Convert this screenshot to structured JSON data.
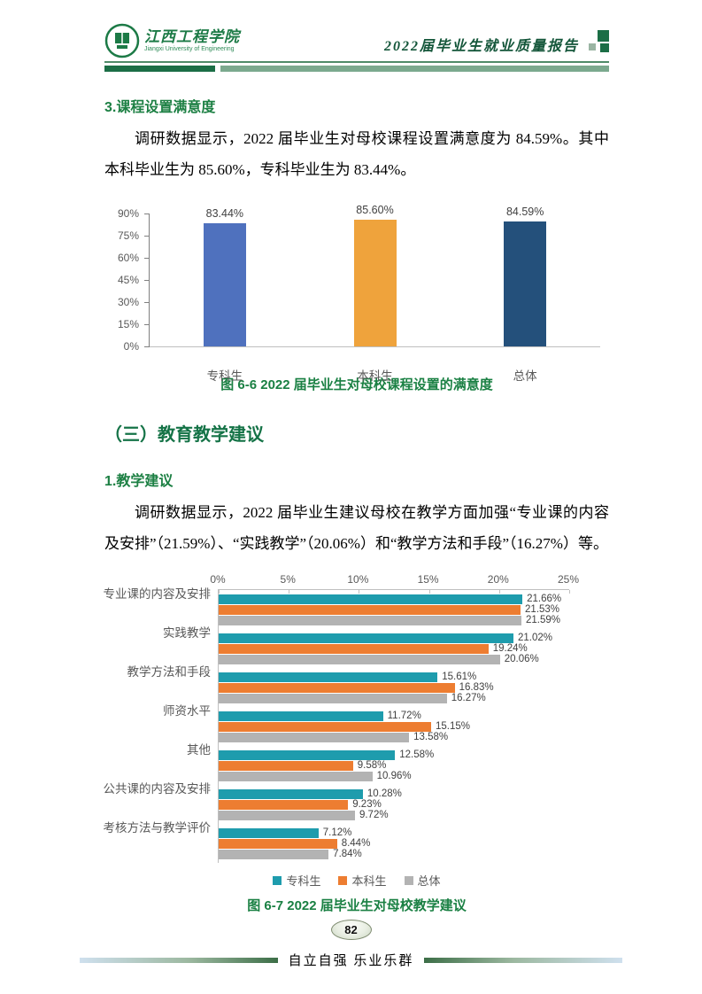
{
  "header": {
    "logo_title": "江西工程学院",
    "logo_subtitle": "Jiangxi University of Engineering",
    "report_title": "2022届毕业生就业质量报告"
  },
  "section3": {
    "heading": "3.课程设置满意度",
    "paragraph": "调研数据显示，2022 届毕业生对母校课程设置满意度为 84.59%。其中本科毕业生为 85.60%，专科毕业生为 83.44%。"
  },
  "figure6_6": {
    "caption": "图 6-6 2022 届毕业生对母校课程设置的满意度"
  },
  "section_c": {
    "heading": "（三）教育教学建议"
  },
  "section1": {
    "heading": "1.教学建议",
    "paragraph": "调研数据显示，2022 届毕业生建议母校在教学方面加强“专业课的内容及安排”（21.59%）、“实践教学”（20.06%）和“教学方法和手段”（16.27%）等。"
  },
  "figure6_7": {
    "caption": "图 6-7 2022 届毕业生对母校教学建议"
  },
  "footer": {
    "page_number": "82",
    "motto": "自立自强  乐业乐群"
  },
  "chart_data": [
    {
      "type": "bar",
      "title": "2022届毕业生对母校课程设置的满意度",
      "categories": [
        "专科生",
        "本科生",
        "总体"
      ],
      "values": [
        83.44,
        85.6,
        84.59
      ],
      "colors": [
        "#4F71BE",
        "#EFA33C",
        "#24507B"
      ],
      "xlabel": "",
      "ylabel": "",
      "ylim": [
        0,
        90
      ],
      "yticks": [
        "0%",
        "15%",
        "30%",
        "45%",
        "60%",
        "75%",
        "90%"
      ],
      "grid": false,
      "data_labels": true,
      "legend_position": "none"
    },
    {
      "type": "bar",
      "orientation": "horizontal",
      "title": "2022届毕业生对母校教学建议",
      "categories": [
        "专业课的内容及安排",
        "实践教学",
        "教学方法和手段",
        "师资水平",
        "其他",
        "公共课的内容及安排",
        "考核方法与教学评价"
      ],
      "series": [
        {
          "name": "专科生",
          "color": "#1E9CAD",
          "values": [
            21.66,
            21.02,
            15.61,
            11.72,
            12.58,
            10.28,
            7.12
          ]
        },
        {
          "name": "本科生",
          "color": "#ED7D31",
          "values": [
            21.53,
            19.24,
            16.83,
            15.15,
            9.58,
            9.23,
            8.44
          ]
        },
        {
          "name": "总体",
          "color": "#B3B3B3",
          "values": [
            21.59,
            20.06,
            16.27,
            13.58,
            10.96,
            9.72,
            7.84
          ]
        }
      ],
      "xlim": [
        0,
        25
      ],
      "xticks": [
        "0%",
        "5%",
        "10%",
        "15%",
        "20%",
        "25%"
      ],
      "xlabel": "",
      "ylabel": "",
      "grid": false,
      "data_labels": true,
      "legend_position": "bottom"
    }
  ]
}
